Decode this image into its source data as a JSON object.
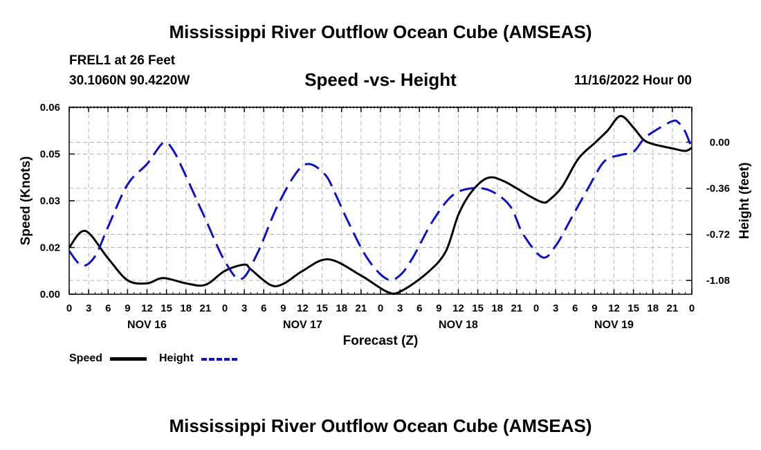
{
  "header": {
    "title": "Mississippi River Outflow Ocean Cube (AMSEAS)",
    "station": "FREL1 at 26 Feet",
    "coords": "30.1060N  90.4220W",
    "subtitle": "Speed -vs- Height",
    "datetime": "11/16/2022 Hour 00",
    "bottom_title": "Mississippi River Outflow Ocean Cube (AMSEAS)"
  },
  "legend": {
    "speed_label": "Speed",
    "height_label": "Height"
  },
  "colors": {
    "speed": "#000000",
    "height": "#1010c8",
    "grid": "#b4b4b4"
  },
  "chart_data": {
    "type": "line",
    "xlabel": "Forecast (Z)",
    "ylabel": "Speed (Knots)",
    "y2label": "Height (feet)",
    "xlim": [
      0,
      96
    ],
    "ylim": [
      0.0,
      0.06
    ],
    "y2lim": [
      -1.188,
      0.273
    ],
    "x_tick_labels": [
      "0",
      "3",
      "6",
      "9",
      "12",
      "15",
      "18",
      "21",
      "0",
      "3",
      "6",
      "9",
      "12",
      "15",
      "18",
      "21",
      "0",
      "3",
      "6",
      "9",
      "12",
      "15",
      "18",
      "21",
      "0",
      "3",
      "6",
      "9",
      "12",
      "15",
      "18",
      "21",
      "0"
    ],
    "day_labels": [
      {
        "label": "NOV 16",
        "x": 12
      },
      {
        "label": "NOV 17",
        "x": 36
      },
      {
        "label": "NOV 18",
        "x": 60
      },
      {
        "label": "NOV 19",
        "x": 84
      }
    ],
    "y_ticks": [
      0.0,
      0.015,
      0.03,
      0.045,
      0.06
    ],
    "y_tick_labels": [
      "0.00",
      "0.02",
      "0.03",
      "0.05",
      "0.06"
    ],
    "y2_ticks": [
      0.0,
      -0.36,
      -0.72,
      -1.08
    ],
    "y2_tick_labels": [
      "0.00",
      "-0.36",
      "-0.72",
      "-1.08"
    ],
    "series": [
      {
        "name": "Speed",
        "axis": "left",
        "x": [
          0,
          2.5,
          6,
          9,
          12,
          14.5,
          18,
          21,
          24,
          27,
          28,
          31,
          33,
          36,
          40,
          45,
          49,
          51,
          55,
          58,
          60,
          62,
          64.5,
          67,
          71,
          73,
          74,
          76,
          78.5,
          81,
          83,
          85,
          87,
          88.5,
          90,
          93,
          95,
          96
        ],
        "values": [
          0.015,
          0.0203,
          0.0115,
          0.0045,
          0.0035,
          0.0052,
          0.0035,
          0.003,
          0.0075,
          0.0095,
          0.008,
          0.003,
          0.0033,
          0.0075,
          0.0112,
          0.006,
          0.0008,
          0.0008,
          0.0065,
          0.0135,
          0.0255,
          0.0328,
          0.0373,
          0.0363,
          0.0315,
          0.0295,
          0.0302,
          0.0345,
          0.0435,
          0.0485,
          0.0525,
          0.0572,
          0.0535,
          0.0497,
          0.0482,
          0.0468,
          0.046,
          0.047
        ]
      },
      {
        "name": "Height",
        "axis": "right",
        "x": [
          0,
          2,
          4,
          6,
          9,
          12,
          14.5,
          16,
          18,
          21,
          24,
          26.5,
          29,
          32,
          35,
          37,
          39.5,
          41,
          43,
          46,
          49,
          51,
          53,
          56,
          59,
          62,
          65,
          68,
          70,
          73,
          75,
          76.5,
          78,
          80,
          82.5,
          85,
          87,
          88.5,
          90,
          93,
          94,
          95,
          96
        ],
        "values": [
          -0.85,
          -0.965,
          -0.89,
          -0.66,
          -0.33,
          -0.17,
          -0.005,
          -0.06,
          -0.265,
          -0.6,
          -0.93,
          -1.07,
          -0.87,
          -0.51,
          -0.24,
          -0.17,
          -0.255,
          -0.4,
          -0.62,
          -0.91,
          -1.07,
          -1.04,
          -0.9,
          -0.62,
          -0.42,
          -0.36,
          -0.38,
          -0.5,
          -0.72,
          -0.9,
          -0.81,
          -0.68,
          -0.54,
          -0.36,
          -0.15,
          -0.1,
          -0.075,
          0.02,
          0.08,
          0.165,
          0.15,
          0.08,
          -0.05
        ]
      }
    ]
  }
}
